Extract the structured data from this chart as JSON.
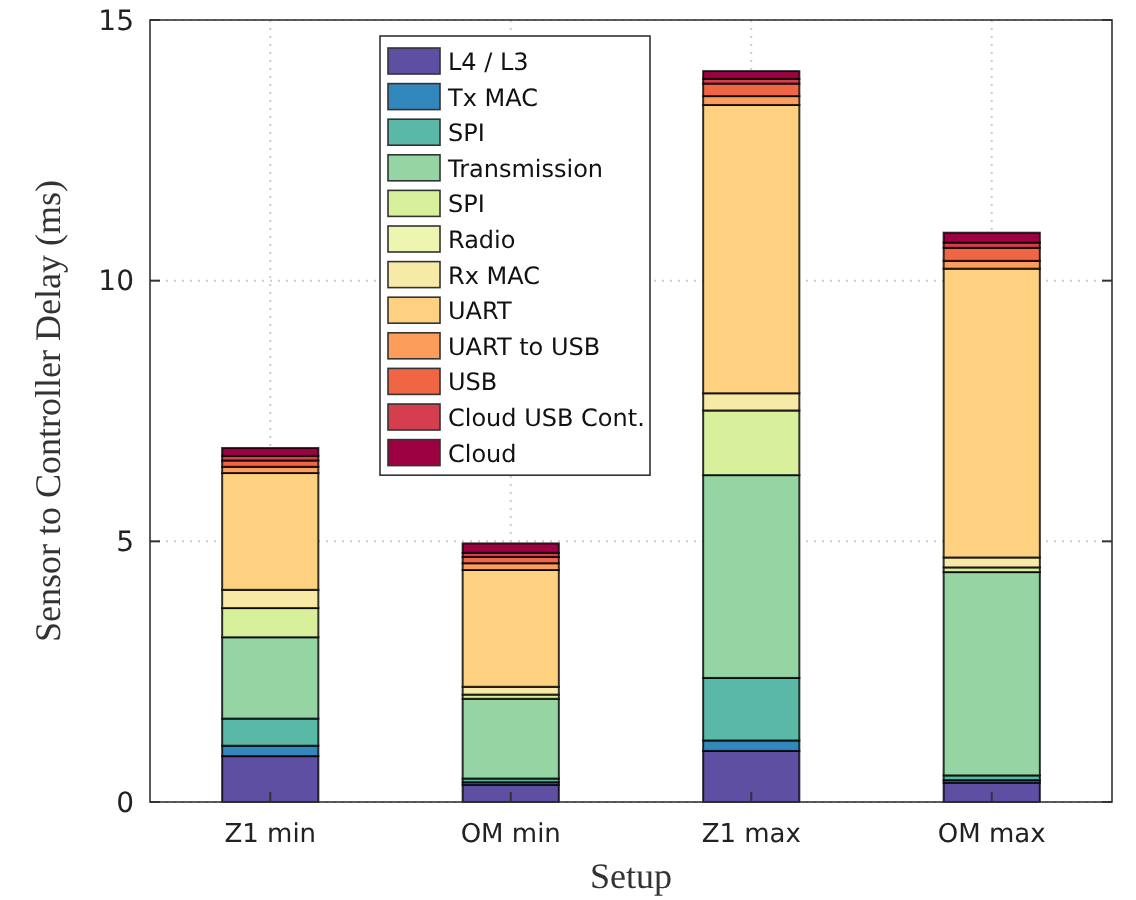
{
  "chart_data": {
    "type": "bar",
    "stacked": true,
    "xlabel": "Setup",
    "ylabel": "Sensor to Controller Delay (ms)",
    "categories": [
      "Z1 min",
      "OM min",
      "Z1 max",
      "OM max"
    ],
    "ylim": [
      0,
      15
    ],
    "yticks": [
      0,
      5,
      10,
      15
    ],
    "grid": true,
    "legend": "top left",
    "series": [
      {
        "name": "L4 / L3",
        "color": "#5e4fa2",
        "values": [
          0.88,
          0.33,
          0.98,
          0.37
        ]
      },
      {
        "name": "Tx MAC",
        "color": "#3288bd",
        "values": [
          0.2,
          0.05,
          0.2,
          0.05
        ]
      },
      {
        "name": "SPI",
        "color": "#5ab9a6",
        "values": [
          0.52,
          0.07,
          1.2,
          0.09
        ]
      },
      {
        "name": "Transmission",
        "color": "#94d5a3",
        "values": [
          1.56,
          1.53,
          3.89,
          3.9
        ]
      },
      {
        "name": "SPI",
        "color": "#d8ef9c",
        "values": [
          0.56,
          0.08,
          1.24,
          0.09
        ]
      },
      {
        "name": "Radio",
        "color": "#eef5b0",
        "values": [
          null,
          null,
          null,
          null
        ]
      },
      {
        "name": "Rx MAC",
        "color": "#f7e9a6",
        "values": [
          0.35,
          0.15,
          0.33,
          0.19
        ]
      },
      {
        "name": "UART",
        "color": "#fdd17f",
        "values": [
          2.24,
          2.24,
          5.53,
          5.54
        ]
      },
      {
        "name": "UART to USB",
        "color": "#fd9d5b",
        "values": [
          0.12,
          0.13,
          0.17,
          0.15
        ]
      },
      {
        "name": "USB",
        "color": "#f06644",
        "values": [
          0.12,
          0.12,
          0.24,
          0.25
        ]
      },
      {
        "name": "Cloud USB Cont.",
        "color": "#d53e4f",
        "values": [
          0.09,
          0.08,
          0.09,
          0.1
        ]
      },
      {
        "name": "Cloud",
        "color": "#9e0142",
        "values": [
          0.15,
          0.18,
          0.15,
          0.19
        ]
      }
    ]
  }
}
